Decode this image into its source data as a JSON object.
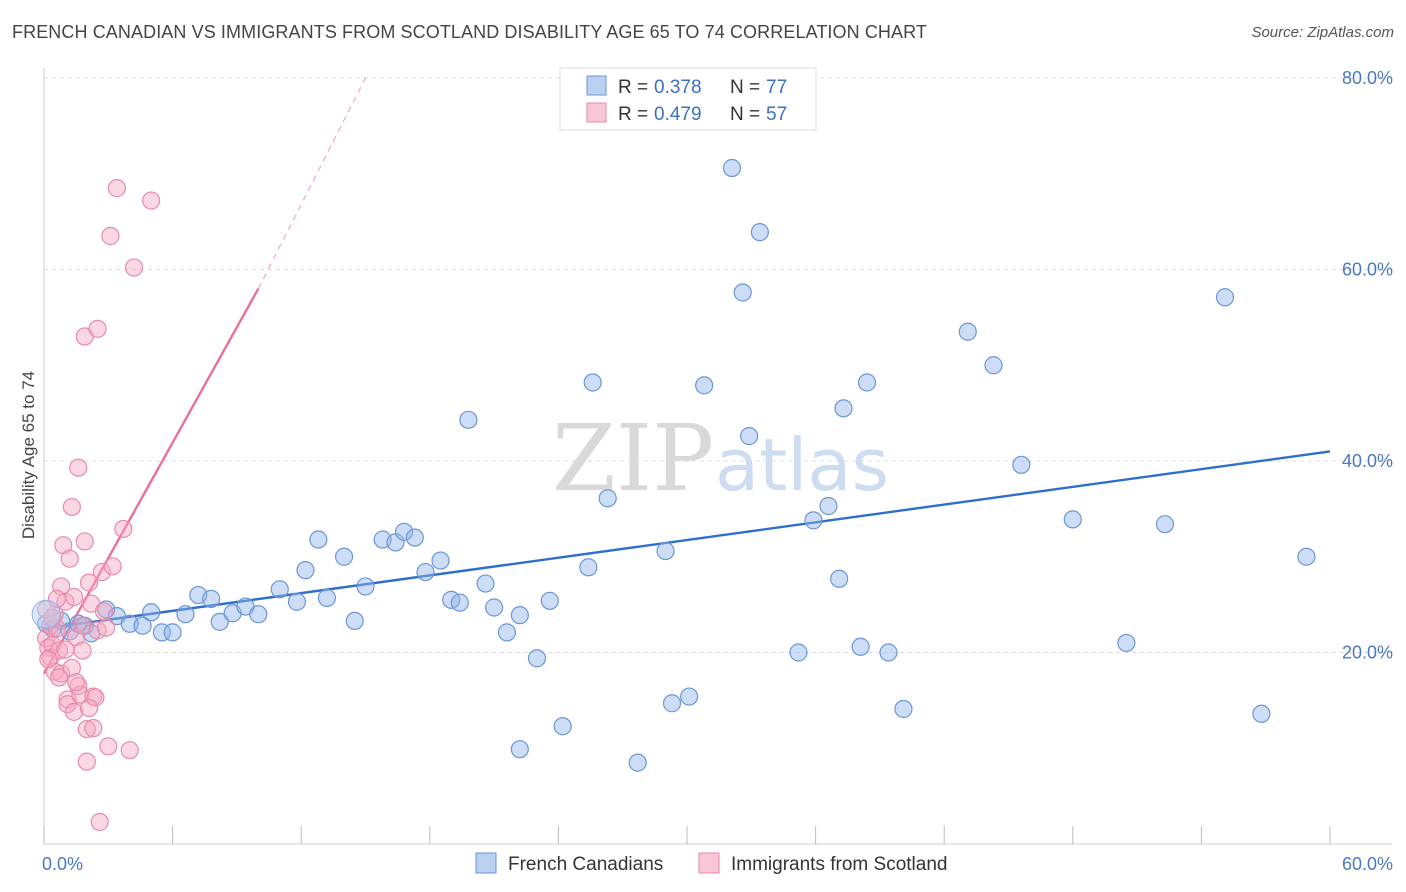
{
  "title": "FRENCH CANADIAN VS IMMIGRANTS FROM SCOTLAND DISABILITY AGE 65 TO 74 CORRELATION CHART",
  "source": "Source: ZipAtlas.com",
  "watermark": {
    "zip": "ZIP",
    "atlas": "atlas"
  },
  "legend": {
    "rows": [
      {
        "r_label": "R =",
        "r_value": "0.378",
        "n_label": "N =",
        "n_value": "77"
      },
      {
        "r_label": "R =",
        "r_value": "0.479",
        "n_label": "N =",
        "n_value": "57"
      }
    ]
  },
  "chart_data": {
    "type": "scatter",
    "title": "FRENCH CANADIAN VS IMMIGRANTS FROM SCOTLAND DISABILITY AGE 65 TO 74 CORRELATION CHART",
    "xlabel": "",
    "ylabel": "Disability Age 65 to 74",
    "xlim": [
      0,
      60
    ],
    "ylim": [
      0,
      80
    ],
    "x_tick_labels": [
      {
        "value": 0,
        "label": "0.0%"
      },
      {
        "value": 60,
        "label": "60.0%"
      }
    ],
    "y_tick_labels": [
      {
        "value": 20,
        "label": "20.0%"
      },
      {
        "value": 40,
        "label": "40.0%"
      },
      {
        "value": 60,
        "label": "60.0%"
      },
      {
        "value": 80,
        "label": "80.0%"
      }
    ],
    "grid": true,
    "legend_position": "top-center",
    "series": [
      {
        "name": "French Canadians",
        "color": "#8fb3e8",
        "edge": "#6b96d6",
        "trend": {
          "x": [
            0,
            60
          ],
          "y": [
            22.5,
            41
          ],
          "color": "#2f6fcc"
        },
        "points": [
          [
            0.1,
            23
          ],
          [
            0.4,
            22.5
          ],
          [
            0.8,
            23.3
          ],
          [
            1.2,
            22.2
          ],
          [
            1.6,
            23
          ],
          [
            1.9,
            22.8
          ],
          [
            2.2,
            22
          ],
          [
            2.9,
            24.5
          ],
          [
            3.4,
            23.8
          ],
          [
            4.0,
            23
          ],
          [
            4.6,
            22.8
          ],
          [
            5.0,
            24.2
          ],
          [
            5.5,
            22.1
          ],
          [
            6.0,
            22.1
          ],
          [
            6.6,
            24
          ],
          [
            7.2,
            26
          ],
          [
            7.8,
            25.6
          ],
          [
            8.2,
            23.2
          ],
          [
            8.8,
            24.1
          ],
          [
            9.4,
            24.8
          ],
          [
            10.0,
            24
          ],
          [
            11.0,
            26.6
          ],
          [
            11.8,
            25.3
          ],
          [
            12.2,
            28.6
          ],
          [
            12.8,
            31.8
          ],
          [
            13.2,
            25.7
          ],
          [
            14.0,
            30
          ],
          [
            14.5,
            23.3
          ],
          [
            15.0,
            26.9
          ],
          [
            15.8,
            31.8
          ],
          [
            16.4,
            31.5
          ],
          [
            16.8,
            32.6
          ],
          [
            17.3,
            32
          ],
          [
            17.8,
            28.4
          ],
          [
            18.5,
            29.6
          ],
          [
            19.0,
            25.5
          ],
          [
            19.4,
            25.2
          ],
          [
            19.8,
            44.3
          ],
          [
            20.6,
            27.2
          ],
          [
            21.0,
            24.7
          ],
          [
            21.6,
            22.1
          ],
          [
            22.2,
            23.9
          ],
          [
            23.0,
            19.4
          ],
          [
            23.6,
            25.4
          ],
          [
            22.2,
            9.9
          ],
          [
            24.2,
            12.3
          ],
          [
            25.4,
            28.9
          ],
          [
            25.6,
            48.2
          ],
          [
            26.3,
            36.1
          ],
          [
            27.7,
            8.5
          ],
          [
            29.0,
            30.6
          ],
          [
            29.3,
            14.7
          ],
          [
            30.1,
            15.4
          ],
          [
            30.8,
            47.9
          ],
          [
            32.1,
            70.6
          ],
          [
            32.6,
            57.6
          ],
          [
            32.9,
            42.6
          ],
          [
            33.4,
            63.9
          ],
          [
            35.2,
            20
          ],
          [
            35.9,
            33.8
          ],
          [
            36.6,
            35.3
          ],
          [
            37.1,
            27.7
          ],
          [
            37.3,
            45.5
          ],
          [
            38.1,
            20.6
          ],
          [
            38.4,
            48.2
          ],
          [
            39.4,
            20
          ],
          [
            40.1,
            14.1
          ],
          [
            43.1,
            53.5
          ],
          [
            44.3,
            50
          ],
          [
            45.6,
            39.6
          ],
          [
            48.0,
            33.9
          ],
          [
            50.5,
            21
          ],
          [
            52.3,
            33.4
          ],
          [
            55.1,
            57.1
          ],
          [
            56.8,
            13.6
          ],
          [
            58.9,
            30
          ]
        ]
      },
      {
        "name": "Immigrants from Scotland",
        "color": "#f4a9c1",
        "edge": "#e88aa9",
        "trend": {
          "x": [
            0,
            10
          ],
          "y": [
            17.8,
            58
          ],
          "color": "#e8709a",
          "dashed_to": {
            "x": 15,
            "y": 80
          }
        },
        "points": [
          [
            0.1,
            21.5
          ],
          [
            0.2,
            20.5
          ],
          [
            0.3,
            22.8
          ],
          [
            0.3,
            19.5
          ],
          [
            0.4,
            20.8
          ],
          [
            0.5,
            18
          ],
          [
            0.5,
            24
          ],
          [
            0.6,
            22.5
          ],
          [
            0.7,
            20.2
          ],
          [
            0.8,
            26.9
          ],
          [
            0.8,
            17.8
          ],
          [
            0.9,
            31.2
          ],
          [
            1.0,
            25.3
          ],
          [
            1.1,
            15.1
          ],
          [
            1.1,
            14.6
          ],
          [
            1.2,
            29.8
          ],
          [
            1.3,
            35.2
          ],
          [
            1.4,
            13.8
          ],
          [
            1.4,
            25.8
          ],
          [
            1.5,
            21.6
          ],
          [
            1.6,
            16.5
          ],
          [
            1.6,
            39.3
          ],
          [
            1.7,
            15.6
          ],
          [
            1.8,
            22.8
          ],
          [
            1.9,
            31.6
          ],
          [
            1.9,
            53
          ],
          [
            2.0,
            12
          ],
          [
            2.0,
            8.6
          ],
          [
            2.1,
            27.3
          ],
          [
            2.2,
            25.1
          ],
          [
            2.3,
            15.4
          ],
          [
            2.3,
            12.1
          ],
          [
            2.4,
            15.3
          ],
          [
            2.5,
            22.3
          ],
          [
            2.5,
            53.8
          ],
          [
            2.6,
            2.3
          ],
          [
            2.7,
            28.4
          ],
          [
            2.8,
            24.3
          ],
          [
            3.0,
            10.2
          ],
          [
            3.1,
            63.5
          ],
          [
            3.2,
            29
          ],
          [
            3.4,
            68.5
          ],
          [
            3.7,
            32.9
          ],
          [
            4.0,
            9.8
          ],
          [
            4.2,
            60.2
          ],
          [
            5.0,
            67.2
          ],
          [
            0.1,
            24.5
          ],
          [
            0.2,
            19.3
          ],
          [
            0.4,
            23.6
          ],
          [
            0.6,
            25.6
          ],
          [
            0.7,
            17.4
          ],
          [
            1.0,
            20.3
          ],
          [
            1.3,
            18.4
          ],
          [
            1.5,
            16.9
          ],
          [
            1.8,
            20.2
          ],
          [
            2.1,
            14.2
          ],
          [
            2.9,
            22.6
          ]
        ]
      }
    ]
  },
  "bottom_legend": {
    "items": [
      {
        "label": "French Canadians",
        "color": "#b9d0f1",
        "edge": "#6b96d6"
      },
      {
        "label": "Immigrants from Scotland",
        "color": "#f8c6d6",
        "edge": "#e88aa9"
      }
    ]
  }
}
